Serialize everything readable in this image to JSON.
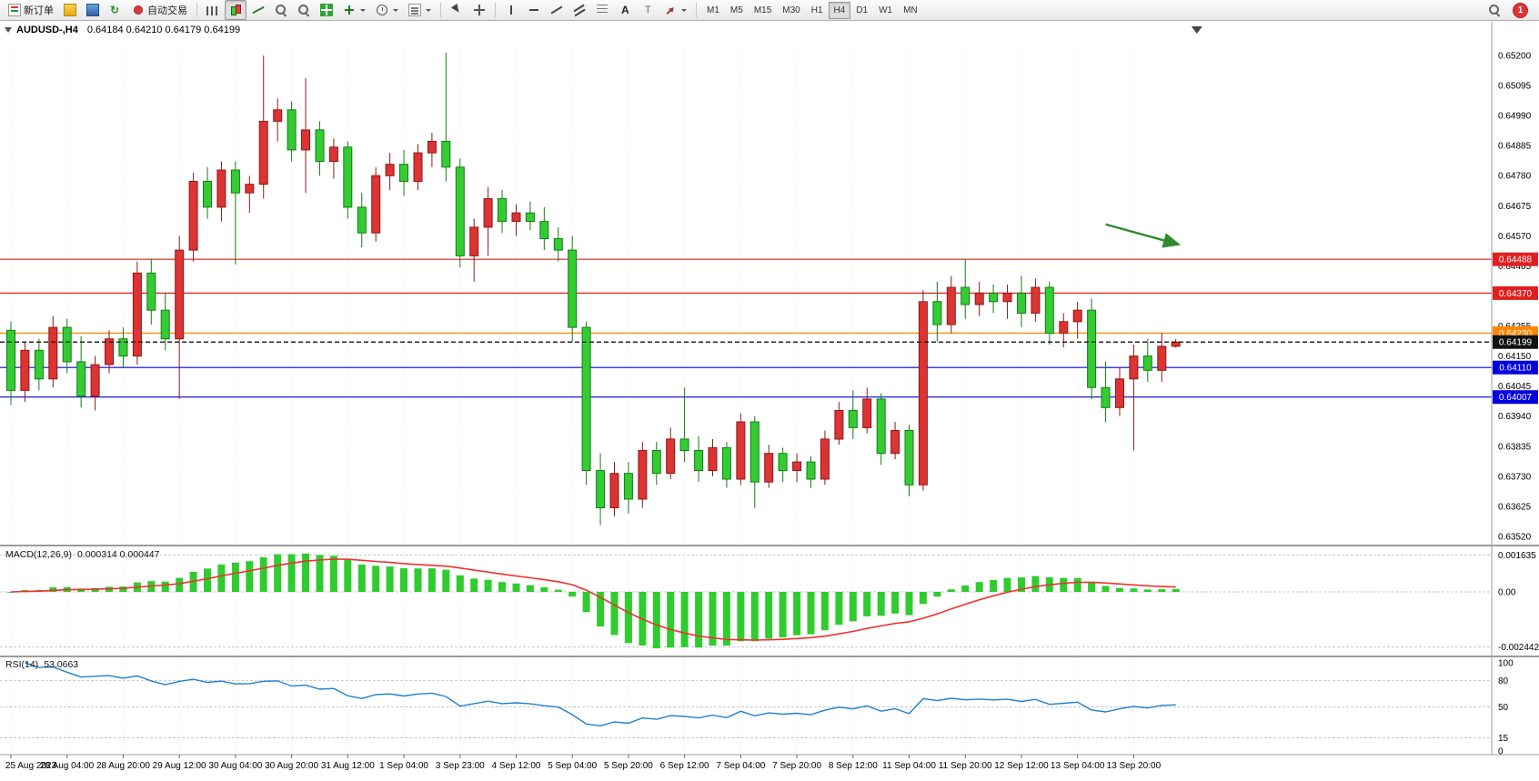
{
  "toolbar": {
    "new_order_label": "新订单",
    "auto_trading_label": "自动交易",
    "timeframes": [
      "M1",
      "M5",
      "M15",
      "M30",
      "H1",
      "H4",
      "D1",
      "W1",
      "MN"
    ],
    "active_timeframe": "H4",
    "notification_count": "1"
  },
  "header": {
    "symbol_period": "AUDUSD-,H4",
    "ohlc": "0.64184 0.64210 0.64179 0.64199"
  },
  "indicators": {
    "macd_label": "MACD(12,26,9)",
    "macd_values": "0.000314 0.000447",
    "rsi_label": "RSI(14)",
    "rsi_value": "53.0663"
  },
  "chart_data": {
    "type": "candlestick",
    "symbol": "AUDUSD-",
    "timeframe": "H4",
    "colors": {
      "up": "#dd3333",
      "up_border": "#8b1a1a",
      "down": "#33cc33",
      "down_border": "#157c15",
      "macd_bar": "#2fcc2f",
      "macd_signal": "#f03030",
      "rsi_line": "#2080d0"
    },
    "y_axis": {
      "min": 0.6352,
      "max": 0.652,
      "step": 0.00105,
      "labels": [
        "0.65200",
        "0.65095",
        "0.64990",
        "0.64885",
        "0.64780",
        "0.64675",
        "0.64570",
        "0.64465",
        "0.64360",
        "0.64255",
        "0.64150",
        "0.64045",
        "0.63940",
        "0.63835",
        "0.63730",
        "0.63625",
        "0.63520"
      ]
    },
    "x_labels": [
      "25 Aug 2023",
      "28 Aug 04:00",
      "28 Aug 20:00",
      "29 Aug 12:00",
      "30 Aug 04:00",
      "30 Aug 20:00",
      "31 Aug 12:00",
      "1 Sep 04:00",
      "3 Sep 23:00",
      "4 Sep 12:00",
      "5 Sep 04:00",
      "5 Sep 20:00",
      "6 Sep 12:00",
      "7 Sep 04:00",
      "7 Sep 20:00",
      "8 Sep 12:00",
      "11 Sep 04:00",
      "11 Sep 20:00",
      "12 Sep 12:00",
      "13 Sep 04:00",
      "13 Sep 20:00"
    ],
    "candles": [
      [
        0.6424,
        0.6427,
        0.6398,
        0.6403
      ],
      [
        0.6403,
        0.642,
        0.6399,
        0.6417
      ],
      [
        0.6417,
        0.6421,
        0.6403,
        0.6407
      ],
      [
        0.6407,
        0.6429,
        0.6404,
        0.6425
      ],
      [
        0.6425,
        0.6428,
        0.6409,
        0.6413
      ],
      [
        0.6413,
        0.6422,
        0.6397,
        0.6401
      ],
      [
        0.6401,
        0.6415,
        0.6396,
        0.6412
      ],
      [
        0.6412,
        0.6424,
        0.6409,
        0.6421
      ],
      [
        0.6421,
        0.6425,
        0.6411,
        0.6415
      ],
      [
        0.6415,
        0.6448,
        0.6412,
        0.6444
      ],
      [
        0.6444,
        0.6449,
        0.6426,
        0.6431
      ],
      [
        0.6431,
        0.6437,
        0.6417,
        0.6421
      ],
      [
        0.6421,
        0.6457,
        0.64,
        0.6452
      ],
      [
        0.6452,
        0.6479,
        0.6448,
        0.6476
      ],
      [
        0.6476,
        0.6481,
        0.6463,
        0.6467
      ],
      [
        0.6467,
        0.6483,
        0.6462,
        0.648
      ],
      [
        0.648,
        0.6483,
        0.6447,
        0.6472
      ],
      [
        0.6472,
        0.6478,
        0.6465,
        0.6475
      ],
      [
        0.6475,
        0.652,
        0.647,
        0.6497
      ],
      [
        0.6497,
        0.6505,
        0.649,
        0.6501
      ],
      [
        0.6501,
        0.6504,
        0.6483,
        0.6487
      ],
      [
        0.6487,
        0.6512,
        0.6472,
        0.6494
      ],
      [
        0.6494,
        0.6497,
        0.6478,
        0.6483
      ],
      [
        0.6483,
        0.6491,
        0.6477,
        0.6488
      ],
      [
        0.6488,
        0.649,
        0.6463,
        0.6467
      ],
      [
        0.6467,
        0.6472,
        0.6453,
        0.6458
      ],
      [
        0.6458,
        0.6481,
        0.6455,
        0.6478
      ],
      [
        0.6478,
        0.6486,
        0.6473,
        0.6482
      ],
      [
        0.6482,
        0.6487,
        0.6471,
        0.6476
      ],
      [
        0.6476,
        0.6489,
        0.6473,
        0.6486
      ],
      [
        0.6486,
        0.6493,
        0.6481,
        0.649
      ],
      [
        0.649,
        0.6521,
        0.6476,
        0.6481
      ],
      [
        0.6481,
        0.6484,
        0.6446,
        0.645
      ],
      [
        0.645,
        0.6463,
        0.6441,
        0.646
      ],
      [
        0.646,
        0.6474,
        0.645,
        0.647
      ],
      [
        0.647,
        0.6473,
        0.6458,
        0.6462
      ],
      [
        0.6462,
        0.6468,
        0.6457,
        0.6465
      ],
      [
        0.6465,
        0.6469,
        0.6459,
        0.6462
      ],
      [
        0.6462,
        0.6467,
        0.6452,
        0.6456
      ],
      [
        0.6456,
        0.646,
        0.6448,
        0.6452
      ],
      [
        0.6452,
        0.6457,
        0.642,
        0.6425
      ],
      [
        0.6425,
        0.6427,
        0.637,
        0.6375
      ],
      [
        0.6375,
        0.6381,
        0.6356,
        0.6362
      ],
      [
        0.6362,
        0.6378,
        0.6359,
        0.6374
      ],
      [
        0.6374,
        0.6378,
        0.636,
        0.6365
      ],
      [
        0.6365,
        0.6385,
        0.6362,
        0.6382
      ],
      [
        0.6382,
        0.6385,
        0.637,
        0.6374
      ],
      [
        0.6374,
        0.639,
        0.6372,
        0.6386
      ],
      [
        0.6386,
        0.6404,
        0.6378,
        0.6382
      ],
      [
        0.6382,
        0.6387,
        0.6371,
        0.6375
      ],
      [
        0.6375,
        0.6386,
        0.6373,
        0.6383
      ],
      [
        0.6383,
        0.6385,
        0.6369,
        0.6372
      ],
      [
        0.6372,
        0.6395,
        0.637,
        0.6392
      ],
      [
        0.6392,
        0.6394,
        0.6362,
        0.6371
      ],
      [
        0.6371,
        0.6384,
        0.6369,
        0.6381
      ],
      [
        0.6381,
        0.6383,
        0.6371,
        0.6375
      ],
      [
        0.6375,
        0.6381,
        0.6371,
        0.6378
      ],
      [
        0.6378,
        0.638,
        0.6369,
        0.6372
      ],
      [
        0.6372,
        0.6389,
        0.637,
        0.6386
      ],
      [
        0.6386,
        0.6399,
        0.6384,
        0.6396
      ],
      [
        0.6396,
        0.6403,
        0.6386,
        0.639
      ],
      [
        0.639,
        0.6404,
        0.6388,
        0.64
      ],
      [
        0.64,
        0.6402,
        0.6377,
        0.6381
      ],
      [
        0.6381,
        0.6392,
        0.6379,
        0.6389
      ],
      [
        0.6389,
        0.6391,
        0.6366,
        0.637
      ],
      [
        0.637,
        0.6438,
        0.6368,
        0.6434
      ],
      [
        0.6434,
        0.6441,
        0.642,
        0.6426
      ],
      [
        0.6426,
        0.6443,
        0.6423,
        0.6439
      ],
      [
        0.6439,
        0.6449,
        0.6428,
        0.6433
      ],
      [
        0.6433,
        0.6441,
        0.6429,
        0.6437
      ],
      [
        0.6437,
        0.644,
        0.643,
        0.6434
      ],
      [
        0.6434,
        0.644,
        0.6428,
        0.6437
      ],
      [
        0.6437,
        0.6443,
        0.6425,
        0.643
      ],
      [
        0.643,
        0.6442,
        0.6427,
        0.6439
      ],
      [
        0.6439,
        0.6441,
        0.6419,
        0.6423
      ],
      [
        0.6423,
        0.643,
        0.6418,
        0.6427
      ],
      [
        0.6427,
        0.6434,
        0.6421,
        0.6431
      ],
      [
        0.6431,
        0.6435,
        0.64,
        0.6404
      ],
      [
        0.6404,
        0.6413,
        0.6392,
        0.6397
      ],
      [
        0.6397,
        0.6411,
        0.6394,
        0.6407
      ],
      [
        0.6407,
        0.6419,
        0.6382,
        0.6415
      ],
      [
        0.6415,
        0.6421,
        0.6406,
        0.641
      ],
      [
        0.641,
        0.6423,
        0.6406,
        0.64184
      ],
      [
        0.64184,
        0.6421,
        0.64179,
        0.64199
      ]
    ],
    "hlines": [
      {
        "price": 0.64488,
        "color": "#e02020",
        "badge": "0.64488"
      },
      {
        "price": 0.6437,
        "color": "#e02020",
        "badge": "0.64370"
      },
      {
        "price": 0.6423,
        "color": "#ff8800",
        "badge": "0.64230"
      },
      {
        "price": 0.64199,
        "color": "#111111",
        "badge": "0.64199",
        "style": "dashed",
        "current": true
      },
      {
        "price": 0.6411,
        "color": "#0000dd",
        "badge": "0.64110"
      },
      {
        "price": 0.64007,
        "color": "#0000dd",
        "badge": "0.64007"
      }
    ],
    "arrow": {
      "from": {
        "index": 78,
        "price": 0.6461
      },
      "to": {
        "index": 83.2,
        "price": 0.6454
      },
      "color": "#2e8b2e"
    },
    "shift_marker_index": 84.5,
    "macd": {
      "params": [
        12,
        26,
        9
      ],
      "axis_labels": [
        "0.001635",
        "0.00",
        "-0.002442"
      ],
      "axis_values": [
        0.001635,
        0,
        -0.002442
      ],
      "display_max": 0.0017,
      "display_min": -0.0025
    },
    "rsi": {
      "period": 14,
      "levels": [
        80,
        50,
        15
      ],
      "axis_labels": [
        "100",
        "80",
        "50",
        "15",
        "0"
      ],
      "axis_values": [
        100,
        80,
        50,
        15,
        0
      ]
    }
  }
}
